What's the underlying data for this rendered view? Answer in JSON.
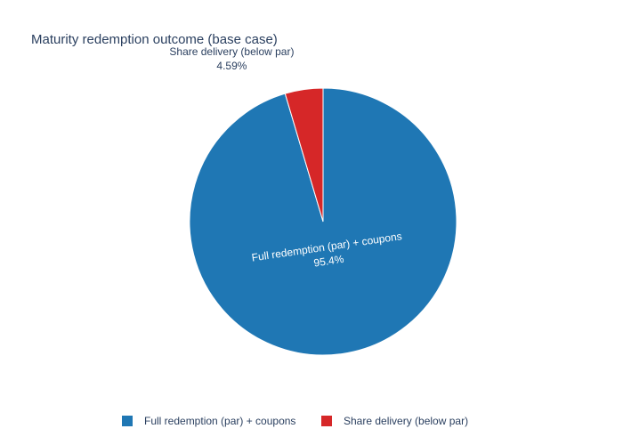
{
  "chart_data": {
    "type": "pie",
    "title": "Maturity redemption outcome (base case)",
    "categories": [
      "Full redemption (par) + coupons",
      "Share delivery (below par)"
    ],
    "values": [
      95.4,
      4.59
    ],
    "value_labels": [
      "95.4%",
      "4.59%"
    ],
    "colors": [
      "#1f77b4",
      "#d62728"
    ],
    "legend": "bottom"
  }
}
